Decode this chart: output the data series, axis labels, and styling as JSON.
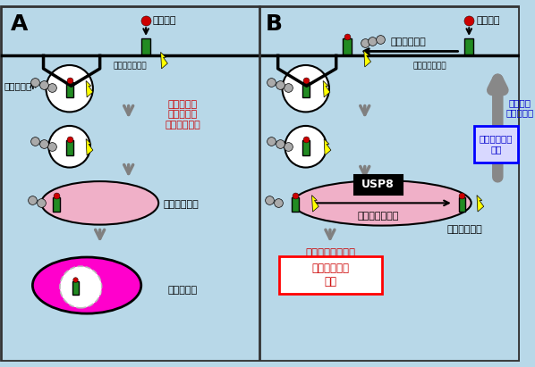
{
  "bg_color": "#b8d8e8",
  "border_color": "#333333",
  "receptor_color": "#228B22",
  "growth_factor_color": "#cc0000",
  "ubiquitin_color": "#aaaaaa",
  "endosome_fill": "#f0b0c8",
  "lysosome_fill": "#ff00cc",
  "lightning_color": "#ffff00",
  "arrow_color": "#808080",
  "text_red": "#cc0000",
  "text_blue": "#0000cc",
  "text_black": "#000000",
  "label_A": "A",
  "label_B": "B",
  "label_growth_factor": "増殖因子",
  "label_receptor": "増殖因子受容体",
  "label_ubiquitin": "ユビキチン",
  "label_endosome_A": "エンドソーム",
  "label_lysosome": "リソソーム",
  "label_degradation": "分解",
  "label_signal_A": "細胞応答を\n引き起こす\n化学シグナル",
  "label_ubiquitination": "ユビキチン化",
  "label_deubiquitination": "脱ユビキチン化",
  "label_USP8": "USP8",
  "label_recycle": "細胞膜に\nリサイクル",
  "label_signal_B_box": "化学シグナル\n持続",
  "label_endosome_B": "エンドソーム",
  "label_lysosome_B": "リソソームで分解",
  "label_signal_B_red": "化学シグナル\n減衰"
}
